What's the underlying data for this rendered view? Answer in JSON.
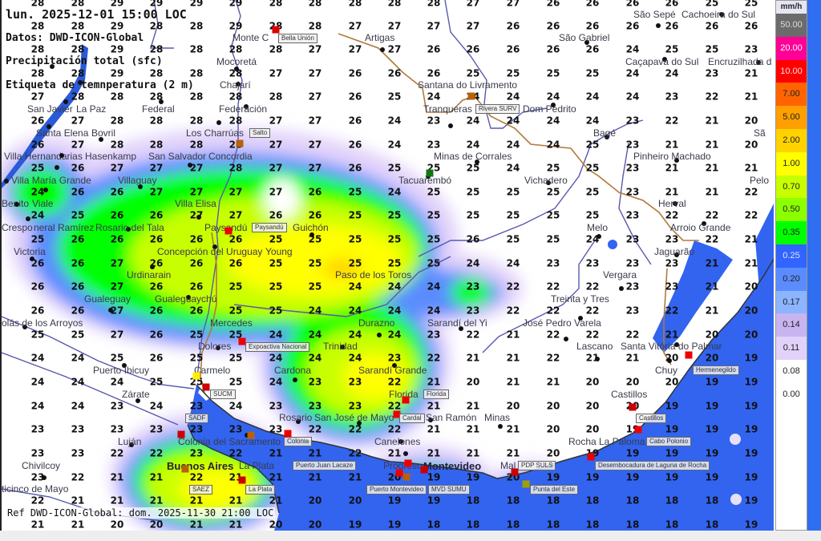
{
  "header": {
    "datetime": "lun. 2025-12-01 15:00 LOC",
    "source": "Datos: DWD-ICON-Global",
    "variable": "Precipitación total (sfc)",
    "label_type": "Etiqueta de temnperatura (2 m)"
  },
  "footer": "Ref DWD-ICON-Global: dom. 2025-11-30 21:00 LOC",
  "legend": {
    "unit": "mm/h",
    "items": [
      {
        "label": "50.00",
        "color": "#6b6b6b",
        "text": "#dddddd"
      },
      {
        "label": "20.00",
        "color": "#ff0096",
        "text": "#ffffff"
      },
      {
        "label": "10.00",
        "color": "#ff0000",
        "text": "#ffdddd"
      },
      {
        "label": "7.00",
        "color": "#ff6400",
        "text": "#222222"
      },
      {
        "label": "5.00",
        "color": "#ffa000",
        "text": "#222222"
      },
      {
        "label": "2.00",
        "color": "#ffd200",
        "text": "#222222"
      },
      {
        "label": "1.00",
        "color": "#ffff00",
        "text": "#222222"
      },
      {
        "label": "0.70",
        "color": "#c8ff00",
        "text": "#222222"
      },
      {
        "label": "0.50",
        "color": "#8cff00",
        "text": "#222222"
      },
      {
        "label": "0.35",
        "color": "#00ff00",
        "text": "#222222"
      },
      {
        "label": "0.25",
        "color": "#3264ff",
        "text": "#dde6ff"
      },
      {
        "label": "0.20",
        "color": "#5a8cff",
        "text": "#222222"
      },
      {
        "label": "0.17",
        "color": "#8cb4ff",
        "text": "#222222"
      },
      {
        "label": "0.14",
        "color": "#c8b4f0",
        "text": "#222222"
      },
      {
        "label": "0.11",
        "color": "#e1d2fa",
        "text": "#222222"
      },
      {
        "label": "0.08",
        "color": "#ffffff",
        "text": "#222222"
      },
      {
        "label": "0.00",
        "color": "#ffffff",
        "text": "#222222"
      }
    ]
  },
  "temperature_grid": [
    [
      "28",
      "28",
      "29",
      "29",
      "29",
      "29",
      "28",
      "28",
      "28",
      "28",
      "28",
      "27",
      "27",
      "26",
      "26",
      "26",
      "26",
      "25",
      "25"
    ],
    [
      "28",
      "28",
      "29",
      "28",
      "28",
      "29",
      "28",
      "28",
      "27",
      "27",
      "27",
      "27",
      "26",
      "26",
      "26",
      "26",
      "26",
      "26",
      "26"
    ],
    [
      "28",
      "28",
      "29",
      "28",
      "28",
      "28",
      "28",
      "27",
      "27",
      "27",
      "26",
      "26",
      "26",
      "26",
      "26",
      "24",
      "25",
      "25",
      "23"
    ],
    [
      "28",
      "28",
      "29",
      "28",
      "28",
      "28",
      "27",
      "27",
      "26",
      "26",
      "26",
      "25",
      "25",
      "25",
      "25",
      "24",
      "24",
      "23",
      "21"
    ],
    [
      "27",
      "28",
      "28",
      "28",
      "28",
      "28",
      "28",
      "27",
      "26",
      "25",
      "24",
      "24",
      "24",
      "24",
      "24",
      "24",
      "23",
      "22",
      "21"
    ],
    [
      "26",
      "27",
      "28",
      "28",
      "28",
      "28",
      "27",
      "27",
      "26",
      "24",
      "23",
      "24",
      "24",
      "24",
      "24",
      "23",
      "22",
      "21",
      "20"
    ],
    [
      "26",
      "27",
      "28",
      "28",
      "28",
      "28",
      "27",
      "27",
      "26",
      "24",
      "23",
      "24",
      "24",
      "24",
      "25",
      "23",
      "21",
      "21",
      "20"
    ],
    [
      "25",
      "26",
      "27",
      "27",
      "27",
      "28",
      "27",
      "27",
      "26",
      "25",
      "25",
      "25",
      "24",
      "25",
      "25",
      "23",
      "21",
      "21",
      "21"
    ],
    [
      "24",
      "26",
      "26",
      "27",
      "27",
      "27",
      "27",
      "26",
      "25",
      "24",
      "25",
      "25",
      "25",
      "25",
      "25",
      "23",
      "21",
      "21",
      "22"
    ],
    [
      "24",
      "25",
      "26",
      "26",
      "27",
      "27",
      "26",
      "26",
      "25",
      "25",
      "25",
      "25",
      "25",
      "25",
      "25",
      "23",
      "22",
      "22",
      "22"
    ],
    [
      "25",
      "26",
      "26",
      "26",
      "26",
      "26",
      "25",
      "25",
      "25",
      "25",
      "25",
      "26",
      "25",
      "25",
      "24",
      "23",
      "23",
      "22",
      "21"
    ],
    [
      "26",
      "26",
      "27",
      "26",
      "26",
      "26",
      "25",
      "25",
      "25",
      "25",
      "25",
      "24",
      "24",
      "23",
      "23",
      "23",
      "23",
      "21",
      "21"
    ],
    [
      "26",
      "26",
      "27",
      "26",
      "26",
      "25",
      "25",
      "25",
      "24",
      "24",
      "24",
      "23",
      "22",
      "22",
      "22",
      "23",
      "23",
      "21",
      "20"
    ],
    [
      "26",
      "26",
      "27",
      "26",
      "26",
      "25",
      "25",
      "24",
      "24",
      "24",
      "24",
      "23",
      "22",
      "22",
      "22",
      "23",
      "22",
      "21",
      "20"
    ],
    [
      "25",
      "25",
      "27",
      "26",
      "25",
      "25",
      "24",
      "24",
      "24",
      "24",
      "23",
      "22",
      "21",
      "22",
      "22",
      "22",
      "21",
      "20",
      "20"
    ],
    [
      "24",
      "24",
      "25",
      "26",
      "25",
      "25",
      "24",
      "24",
      "24",
      "23",
      "22",
      "21",
      "21",
      "22",
      "21",
      "21",
      "20",
      "20",
      "19"
    ],
    [
      "24",
      "24",
      "24",
      "25",
      "25",
      "25",
      "24",
      "23",
      "23",
      "22",
      "21",
      "20",
      "21",
      "21",
      "20",
      "20",
      "20",
      "19",
      "19"
    ],
    [
      "24",
      "24",
      "23",
      "24",
      "23",
      "24",
      "23",
      "23",
      "23",
      "22",
      "21",
      "21",
      "20",
      "20",
      "20",
      "20",
      "19",
      "19",
      "19"
    ],
    [
      "23",
      "23",
      "23",
      "23",
      "23",
      "23",
      "23",
      "22",
      "22",
      "22",
      "21",
      "21",
      "21",
      "20",
      "20",
      "19",
      "19",
      "19",
      "19"
    ],
    [
      "23",
      "23",
      "22",
      "22",
      "23",
      "22",
      "21",
      "21",
      "22",
      "21",
      "21",
      "21",
      "21",
      "20",
      "19",
      "19",
      "19",
      "19",
      "19"
    ],
    [
      "23",
      "22",
      "21",
      "21",
      "22",
      "21",
      "21",
      "21",
      "21",
      "20",
      "19",
      "19",
      "20",
      "19",
      "19",
      "19",
      "19",
      "19",
      "19"
    ],
    [
      "22",
      "21",
      "21",
      "21",
      "21",
      "21",
      "21",
      "20",
      "20",
      "19",
      "19",
      "18",
      "18",
      "18",
      "18",
      "18",
      "18",
      "18",
      "19"
    ],
    [
      "21",
      "21",
      "20",
      "20",
      "21",
      "21",
      "20",
      "20",
      "19",
      "19",
      "18",
      "18",
      "18",
      "18",
      "18",
      "18",
      "18",
      "18",
      "19"
    ]
  ],
  "cities": [
    "Monte C",
    "Mocoretá",
    "Chajarí",
    "Artigas",
    "San Javier",
    "La Paz",
    "Santa Elena",
    "Federal",
    "Federación",
    "Los Charrúas",
    "Villa Hernandarias",
    "Bovril",
    "Concordia",
    "Hasenkamp",
    "Villa María Grande",
    "San Salvador",
    "Benito",
    "Viale",
    "Villaguay",
    "Crespo",
    "neral Ramírez",
    "Rosario del Tala",
    "Villa Elisa",
    "Paysandú",
    "Guichón",
    "Concepción del Uruguay",
    "Victoria",
    "Urdinarain",
    "Young",
    "Paso de los Toros",
    "Santana do Livramento",
    "Dom Pedrito",
    "Tranqueras",
    "Bagé",
    "Minas de Corrales",
    "Tacuarembó",
    "Vichadero",
    "Pinheiro Machado",
    "Herval",
    "Arroio Grande",
    "Melo",
    "Jaguarão",
    "São Sepé",
    "São Gabriel",
    "Caçapava do Sul",
    "Encruzilhada d",
    "Cachoeira do Sul",
    "Sã",
    "Pelo",
    "Gualeguaychú",
    "Gualeguay",
    "olás de los Arroyos",
    "Mercedes",
    "Dolores",
    "Trinidad",
    "Durazno",
    "Sarandí Grande",
    "Puerto Ibicuy",
    "Cardona",
    "Carmelo",
    "Zárate",
    "Florida",
    "Sarandí del Yi",
    "José Pedro Varela",
    "Treinta y Tres",
    "Vergara",
    "Santa Vitória do Palmar",
    "Lascano",
    "Chuy",
    "Rosario",
    "San José de Mayo",
    "San Ramón",
    "Minas",
    "Castillos",
    "Colonia del Sacramento",
    "Luján",
    "Buenos Aires",
    "Canelones",
    "Progreso",
    "Rocha",
    "La Paloma",
    "Montevideo",
    "Mal",
    "Chivilcoy",
    "La Plata",
    "ticinco de Mayo"
  ],
  "stations": [
    "Bella Unión",
    "Salto",
    "Paysandú",
    "Rivera SURV",
    "Expoactiva Nacional",
    "SUCM",
    "Florida",
    "Cardal",
    "Colonia",
    "Puerto Juan Lacaze",
    "SADF",
    "SAEZ",
    "La Plata",
    "MVD SUMU",
    "Puerto Montevideo",
    "PDP SULS",
    "Punta del Este",
    "Castillos",
    "Cabo Polonio",
    "Desembocadura de Laguna de Rocha",
    "Hermenegildo"
  ]
}
